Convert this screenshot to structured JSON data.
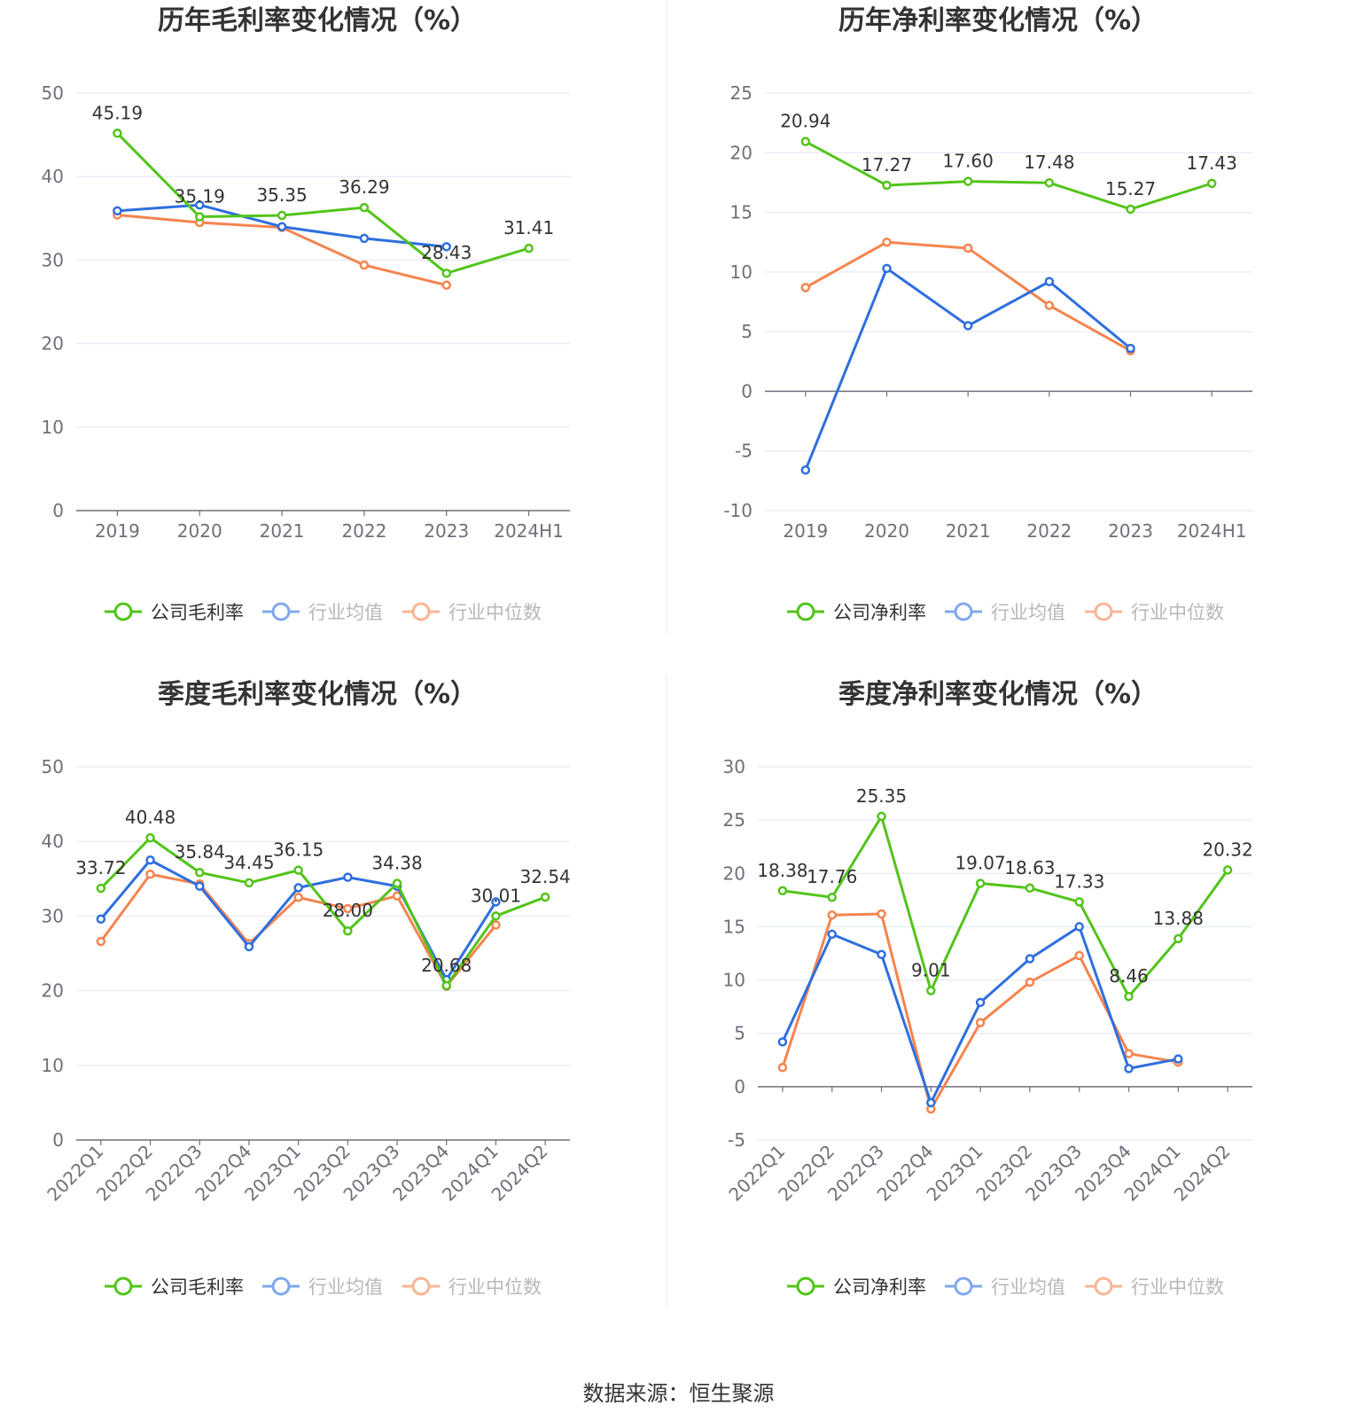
{
  "colors": {
    "company": "#52c41a",
    "avg": "#2f6fde",
    "median": "#f5844e",
    "grid": "#e0e6f1",
    "axis": "#6e7079",
    "divider": "#eeeeee"
  },
  "legend_labels": {
    "gross": [
      "公司毛利率",
      "行业均值",
      "行业中位数"
    ],
    "net": [
      "公司净利率",
      "行业均值",
      "行业中位数"
    ]
  },
  "footer": {
    "source": "数据来源：恒生聚源"
  },
  "chart_data": [
    {
      "type": "line",
      "title": "历年毛利率变化情况（%）",
      "categories": [
        "2019",
        "2020",
        "2021",
        "2022",
        "2023",
        "2024H1"
      ],
      "ylim": [
        0,
        50
      ],
      "yticks": [
        0,
        10,
        20,
        30,
        40,
        50
      ],
      "grid": true,
      "legend_position": "bottom",
      "series": [
        {
          "name": "公司毛利率",
          "values": [
            45.19,
            35.19,
            35.35,
            36.29,
            28.43,
            31.41
          ],
          "labels": true
        },
        {
          "name": "行业均值",
          "values": [
            35.9,
            36.6,
            34.0,
            32.6,
            31.6,
            null
          ]
        },
        {
          "name": "行业中位数",
          "values": [
            35.4,
            34.5,
            33.9,
            29.4,
            27.0,
            null
          ]
        }
      ]
    },
    {
      "type": "line",
      "title": "历年净利率变化情况（%）",
      "categories": [
        "2019",
        "2020",
        "2021",
        "2022",
        "2023",
        "2024H1"
      ],
      "ylim": [
        -10,
        25
      ],
      "yticks": [
        -10,
        -5,
        0,
        5,
        10,
        15,
        20,
        25
      ],
      "grid": true,
      "legend_position": "bottom",
      "series": [
        {
          "name": "公司净利率",
          "values": [
            20.94,
            17.27,
            17.6,
            17.48,
            15.27,
            17.43
          ],
          "labels": true
        },
        {
          "name": "行业均值",
          "values": [
            -6.6,
            10.3,
            5.5,
            9.2,
            3.6,
            null
          ]
        },
        {
          "name": "行业中位数",
          "values": [
            8.7,
            12.5,
            12.0,
            7.2,
            3.4,
            null
          ]
        }
      ]
    },
    {
      "type": "line",
      "title": "季度毛利率变化情况（%）",
      "categories": [
        "2022Q1",
        "2022Q2",
        "2022Q3",
        "2022Q4",
        "2023Q1",
        "2023Q2",
        "2023Q3",
        "2023Q4",
        "2024Q1",
        "2024Q2"
      ],
      "ylim": [
        0,
        50
      ],
      "yticks": [
        0,
        10,
        20,
        30,
        40,
        50
      ],
      "grid": true,
      "legend_position": "bottom",
      "rotated_x_labels": true,
      "series": [
        {
          "name": "公司毛利率",
          "values": [
            33.72,
            40.48,
            35.84,
            34.45,
            36.15,
            28.0,
            34.38,
            20.68,
            30.01,
            32.54
          ],
          "labels": true
        },
        {
          "name": "行业均值",
          "values": [
            29.6,
            37.5,
            34.0,
            25.9,
            33.8,
            35.2,
            34.0,
            21.5,
            31.9,
            null
          ]
        },
        {
          "name": "行业中位数",
          "values": [
            26.6,
            35.6,
            34.3,
            26.3,
            32.5,
            31.0,
            32.7,
            20.6,
            28.8,
            null
          ]
        }
      ]
    },
    {
      "type": "line",
      "title": "季度净利率变化情况（%）",
      "categories": [
        "2022Q1",
        "2022Q2",
        "2022Q3",
        "2022Q4",
        "2023Q1",
        "2023Q2",
        "2023Q3",
        "2023Q4",
        "2024Q1",
        "2024Q2"
      ],
      "ylim": [
        -5,
        30
      ],
      "yticks": [
        -5,
        0,
        5,
        10,
        15,
        20,
        25,
        30
      ],
      "grid": true,
      "legend_position": "bottom",
      "rotated_x_labels": true,
      "series": [
        {
          "name": "公司净利率",
          "values": [
            18.38,
            17.76,
            25.35,
            9.01,
            19.07,
            18.63,
            17.33,
            8.46,
            13.88,
            20.32
          ],
          "labels": true
        },
        {
          "name": "行业均值",
          "values": [
            4.2,
            14.3,
            12.4,
            -1.5,
            7.9,
            12.0,
            15.0,
            1.7,
            2.6,
            null
          ]
        },
        {
          "name": "行业中位数",
          "values": [
            1.8,
            16.1,
            16.2,
            -2.1,
            6.0,
            9.8,
            12.3,
            3.1,
            2.3,
            null
          ]
        }
      ]
    }
  ]
}
